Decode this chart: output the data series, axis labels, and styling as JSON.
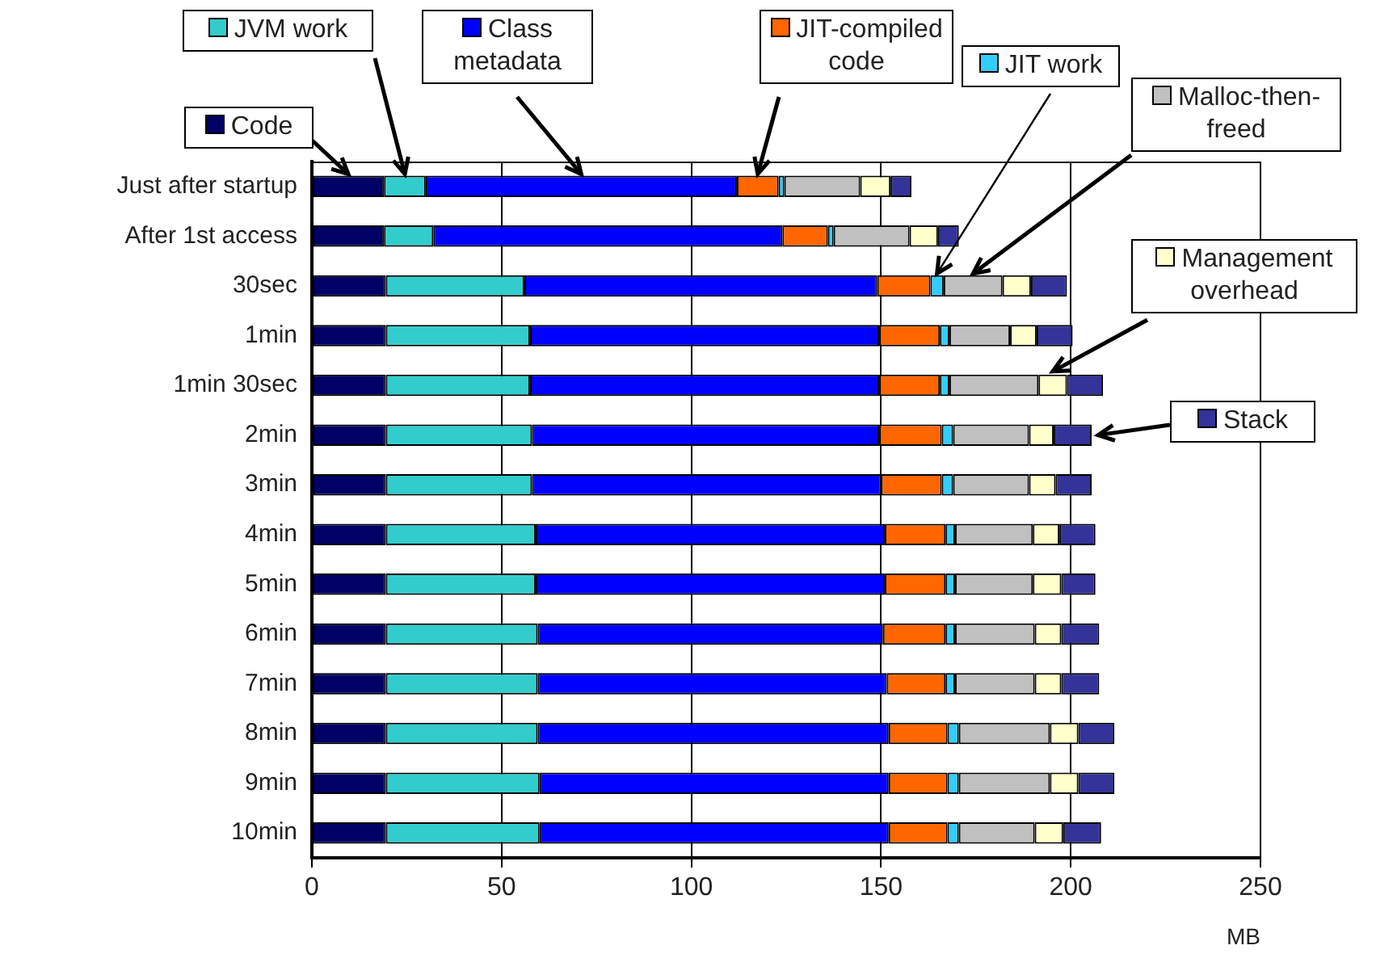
{
  "chart_data": {
    "type": "bar",
    "orientation": "horizontal",
    "stacked": true,
    "xlabel": "MB",
    "categories": [
      "Just after startup",
      "After 1st access",
      "30sec",
      "1min",
      "1min 30sec",
      "2min",
      "3min",
      "4min",
      "5min",
      "6min",
      "7min",
      "8min",
      "9min",
      "10min"
    ],
    "legend": "top",
    "xlim": [
      0,
      250
    ],
    "xticks": [
      0,
      50,
      100,
      150,
      200,
      250
    ],
    "grid": "x",
    "series": [
      {
        "name": "Code",
        "color": "#000066",
        "values": [
          19,
          19,
          19.5,
          19.5,
          19.5,
          19.5,
          19.5,
          19.5,
          19.5,
          19.5,
          19.5,
          19.5,
          19.5,
          19.5
        ]
      },
      {
        "name": "JVM work",
        "color": "#33cccc",
        "values": [
          11,
          13,
          36.5,
          38,
          38,
          38.5,
          38.5,
          39.5,
          39.5,
          40,
          40,
          40,
          40.5,
          40.5
        ]
      },
      {
        "name": "Class metadata",
        "color": "#0000ff",
        "values": [
          82,
          92,
          93,
          92,
          92,
          91.5,
          92,
          92,
          92,
          91,
          92,
          92.5,
          92,
          92
        ]
      },
      {
        "name": "JIT-compiled code",
        "color": "#ff6600",
        "values": [
          11,
          12,
          14,
          16,
          16,
          16.5,
          16,
          16,
          16,
          16.5,
          15.5,
          15.5,
          15.5,
          15.5
        ]
      },
      {
        "name": "JIT work",
        "color": "#33ccff",
        "values": [
          1.5,
          1.5,
          3.5,
          2.5,
          2.5,
          3,
          3,
          2.5,
          2.5,
          2.5,
          2.5,
          3,
          3,
          3
        ]
      },
      {
        "name": "Malloc-then-freed",
        "color": "#c0c0c0",
        "values": [
          20,
          20,
          15.5,
          16,
          23.5,
          20,
          20,
          20.5,
          20.5,
          21,
          21,
          24,
          24,
          20
        ]
      },
      {
        "name": "Management overhead",
        "color": "#ffffcc",
        "values": [
          8,
          7.5,
          7.5,
          7,
          7.5,
          6.5,
          7,
          7,
          7.5,
          7,
          7,
          7.5,
          7.5,
          7.5
        ]
      },
      {
        "name": "Stack",
        "color": "#333399",
        "values": [
          5.5,
          5.5,
          9.5,
          9.5,
          9.5,
          10,
          9.5,
          9.5,
          9,
          10,
          10,
          9.5,
          9.5,
          10
        ]
      }
    ]
  }
}
